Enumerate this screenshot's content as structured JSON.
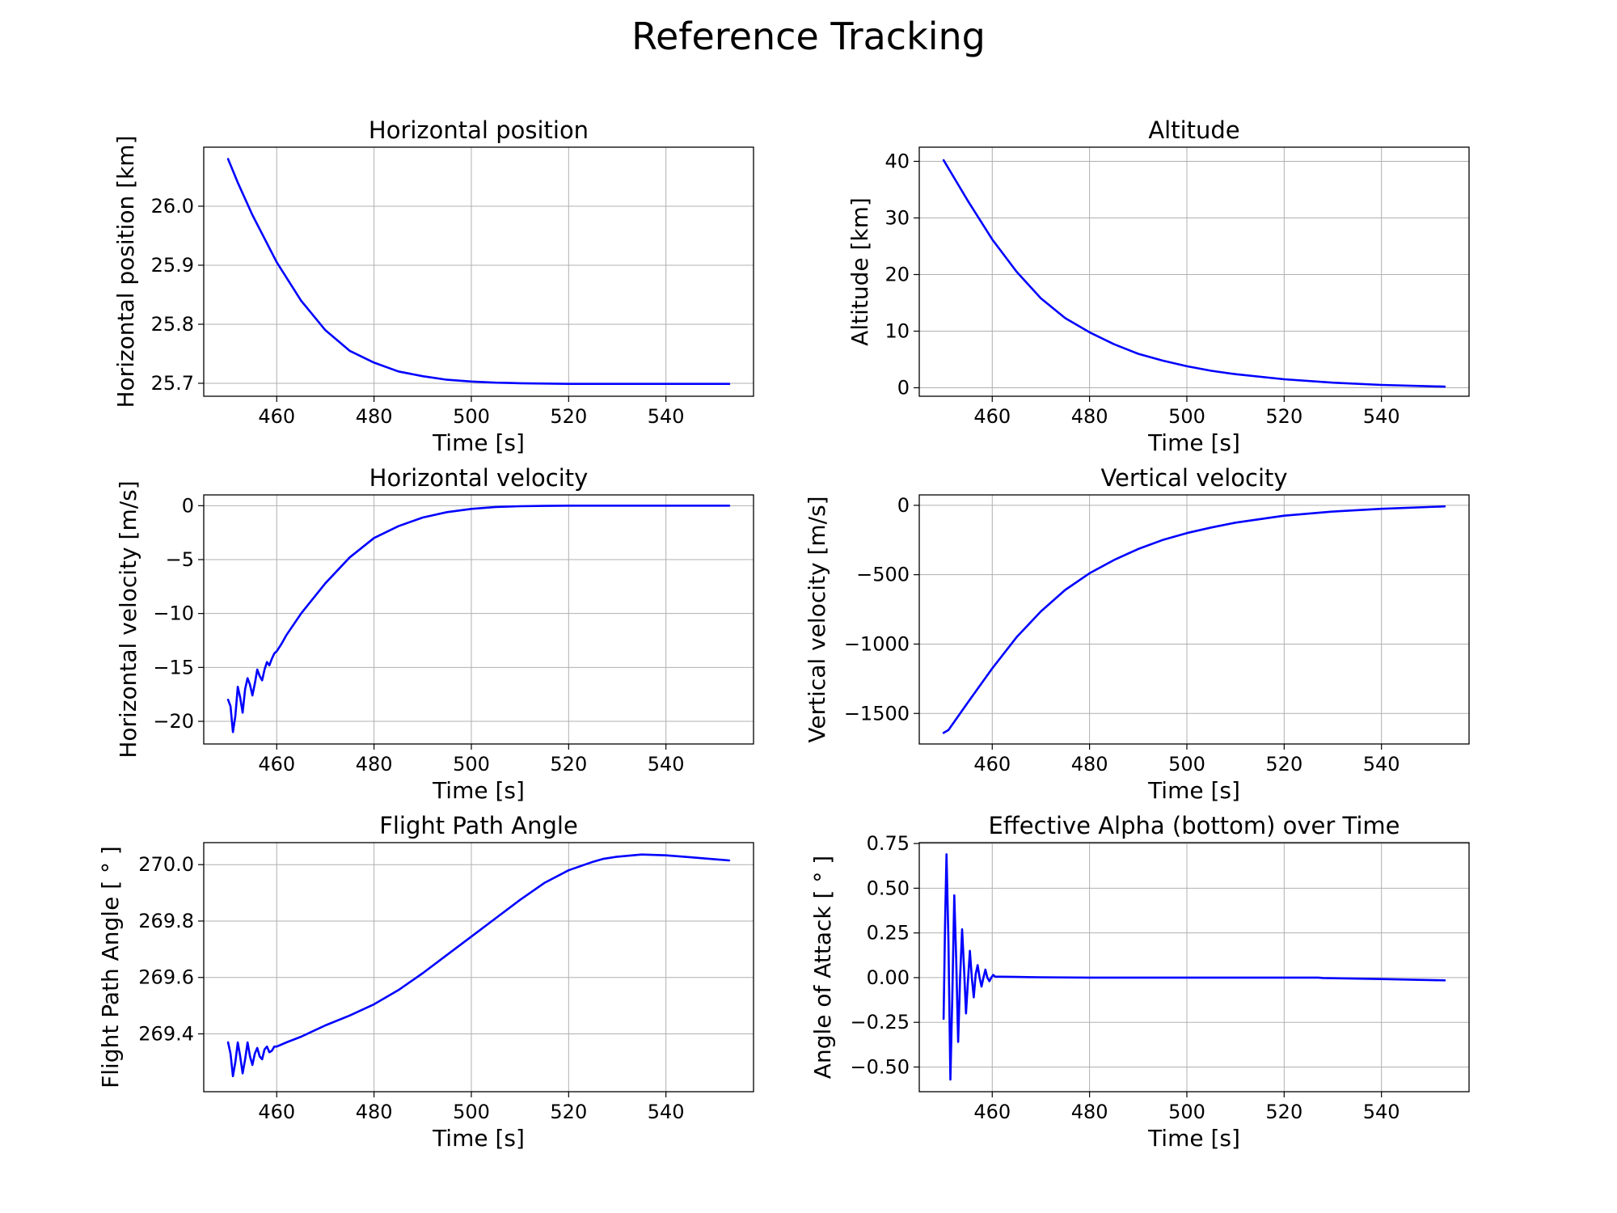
{
  "figure": {
    "title": "Reference Tracking"
  },
  "chart_data": [
    {
      "type": "line",
      "title": "Horizontal position",
      "xlabel": "Time [s]",
      "ylabel": "Horizontal position [km]",
      "xlim": [
        445,
        558
      ],
      "ylim": [
        25.678,
        26.1
      ],
      "xticks": [
        460,
        480,
        500,
        520,
        540
      ],
      "xtick_labels": [
        "460",
        "480",
        "500",
        "520",
        "540"
      ],
      "yticks": [
        25.7,
        25.8,
        25.9,
        26.0
      ],
      "ytick_labels": [
        "25.7",
        "25.8",
        "25.9",
        "26.0"
      ],
      "grid": true,
      "series": [
        {
          "color": "#0000ff",
          "x": [
            450,
            452,
            455,
            460,
            465,
            470,
            475,
            480,
            485,
            490,
            495,
            500,
            505,
            510,
            520,
            530,
            540,
            553
          ],
          "y": [
            26.08,
            26.04,
            25.985,
            25.905,
            25.84,
            25.79,
            25.755,
            25.735,
            25.72,
            25.712,
            25.706,
            25.703,
            25.701,
            25.7,
            25.699,
            25.699,
            25.699,
            25.699
          ]
        }
      ]
    },
    {
      "type": "line",
      "title": "Altitude",
      "xlabel": "Time [s]",
      "ylabel": "Altitude [km]",
      "xlim": [
        445,
        558
      ],
      "ylim": [
        -1.5,
        42.5
      ],
      "xticks": [
        460,
        480,
        500,
        520,
        540
      ],
      "xtick_labels": [
        "460",
        "480",
        "500",
        "520",
        "540"
      ],
      "yticks": [
        0,
        10,
        20,
        30,
        40
      ],
      "ytick_labels": [
        "0",
        "10",
        "20",
        "30",
        "40"
      ],
      "grid": true,
      "series": [
        {
          "color": "#0000ff",
          "x": [
            450,
            455,
            460,
            465,
            470,
            475,
            480,
            485,
            490,
            495,
            500,
            505,
            510,
            520,
            530,
            540,
            553
          ],
          "y": [
            40.2,
            33.0,
            26.2,
            20.5,
            15.8,
            12.3,
            9.8,
            7.7,
            6.0,
            4.8,
            3.8,
            3.0,
            2.4,
            1.5,
            0.9,
            0.5,
            0.2
          ]
        }
      ]
    },
    {
      "type": "line",
      "title": "Horizontal velocity",
      "xlabel": "Time [s]",
      "ylabel": "Horizontal velocity [m/s]",
      "xlim": [
        445,
        558
      ],
      "ylim": [
        -22.1,
        1.0
      ],
      "xticks": [
        460,
        480,
        500,
        520,
        540
      ],
      "xtick_labels": [
        "460",
        "480",
        "500",
        "520",
        "540"
      ],
      "yticks": [
        -20,
        -15,
        -10,
        -5,
        0
      ],
      "ytick_labels": [
        "−20",
        "−15",
        "−10",
        "−5",
        "0"
      ],
      "grid": true,
      "series": [
        {
          "color": "#0000ff",
          "x": [
            450,
            450.5,
            451,
            451.5,
            452,
            452.5,
            453,
            453.5,
            454,
            454.5,
            455,
            455.5,
            456,
            456.5,
            457,
            457.5,
            458,
            458.5,
            459,
            459.5,
            460,
            461,
            462,
            465,
            470,
            475,
            480,
            485,
            490,
            495,
            500,
            505,
            510,
            515,
            520,
            525,
            530,
            540,
            553
          ],
          "y": [
            -18.0,
            -18.6,
            -21.0,
            -19.5,
            -16.8,
            -17.8,
            -19.2,
            -17.0,
            -16.0,
            -16.6,
            -17.6,
            -16.5,
            -15.2,
            -15.8,
            -16.2,
            -15.2,
            -14.5,
            -14.8,
            -14.2,
            -13.7,
            -13.5,
            -12.8,
            -12.0,
            -10.0,
            -7.2,
            -4.8,
            -3.0,
            -1.9,
            -1.1,
            -0.6,
            -0.3,
            -0.12,
            -0.05,
            -0.02,
            0.0,
            0.0,
            0.0,
            0.0,
            0.0
          ]
        }
      ]
    },
    {
      "type": "line",
      "title": "Vertical velocity",
      "xlabel": "Time [s]",
      "ylabel": "Vertical velocity [m/s]",
      "xlim": [
        445,
        558
      ],
      "ylim": [
        -1720,
        75
      ],
      "xticks": [
        460,
        480,
        500,
        520,
        540
      ],
      "xtick_labels": [
        "460",
        "480",
        "500",
        "520",
        "540"
      ],
      "yticks": [
        -1500,
        -1000,
        -500,
        0
      ],
      "ytick_labels": [
        "−1500",
        "−1000",
        "−500",
        "0"
      ],
      "grid": true,
      "series": [
        {
          "color": "#0000ff",
          "x": [
            450,
            451,
            455,
            460,
            465,
            470,
            475,
            480,
            485,
            490,
            495,
            500,
            505,
            510,
            520,
            530,
            540,
            553
          ],
          "y": [
            -1640,
            -1620,
            -1420,
            -1175,
            -950,
            -765,
            -610,
            -490,
            -395,
            -315,
            -250,
            -200,
            -160,
            -125,
            -75,
            -45,
            -25,
            -8
          ]
        }
      ]
    },
    {
      "type": "line",
      "title": "Flight Path Angle",
      "xlabel": "Time [s]",
      "ylabel": "Flight Path Angle [ ° ]",
      "xlim": [
        445,
        558
      ],
      "ylim": [
        269.195,
        270.078
      ],
      "xticks": [
        460,
        480,
        500,
        520,
        540
      ],
      "xtick_labels": [
        "460",
        "480",
        "500",
        "520",
        "540"
      ],
      "yticks": [
        269.4,
        269.6,
        269.8,
        270.0
      ],
      "ytick_labels": [
        "269.4",
        "269.6",
        "269.8",
        "270.0"
      ],
      "grid": true,
      "series": [
        {
          "color": "#0000ff",
          "x": [
            450,
            450.5,
            451,
            451.5,
            452,
            452.5,
            453,
            453.5,
            454,
            454.5,
            455,
            455.5,
            456,
            456.5,
            457,
            457.5,
            458,
            458.5,
            459,
            459.5,
            460,
            462,
            465,
            470,
            475,
            480,
            485,
            490,
            495,
            500,
            505,
            510,
            515,
            520,
            525,
            527,
            530,
            535,
            540,
            545,
            553
          ],
          "y": [
            269.37,
            269.33,
            269.25,
            269.3,
            269.37,
            269.32,
            269.26,
            269.31,
            269.37,
            269.32,
            269.29,
            269.33,
            269.35,
            269.32,
            269.31,
            269.345,
            269.355,
            269.335,
            269.34,
            269.355,
            269.355,
            269.37,
            269.39,
            269.43,
            269.465,
            269.505,
            269.555,
            269.615,
            269.68,
            269.745,
            269.81,
            269.875,
            269.935,
            269.98,
            270.01,
            270.02,
            270.028,
            270.036,
            270.033,
            270.026,
            270.015
          ]
        }
      ]
    },
    {
      "type": "line",
      "title": "Effective Alpha (bottom) over Time",
      "xlabel": "Time [s]",
      "ylabel": "Angle of Attack [ ° ]",
      "xlim": [
        445,
        558
      ],
      "ylim": [
        -0.638,
        0.755
      ],
      "xticks": [
        460,
        480,
        500,
        520,
        540
      ],
      "xtick_labels": [
        "460",
        "480",
        "500",
        "520",
        "540"
      ],
      "yticks": [
        -0.5,
        -0.25,
        0.0,
        0.25,
        0.5,
        0.75
      ],
      "ytick_labels": [
        "−0.50",
        "−0.25",
        "0.00",
        "0.25",
        "0.50",
        "0.75"
      ],
      "grid": true,
      "series": [
        {
          "color": "#0000ff",
          "x": [
            450,
            450.3,
            450.6,
            451,
            451.4,
            451.8,
            452.2,
            452.6,
            453,
            453.4,
            453.8,
            454.2,
            454.6,
            455,
            455.4,
            455.8,
            456.2,
            456.6,
            457,
            457.4,
            457.8,
            458.2,
            458.6,
            459,
            459.4,
            459.8,
            460.2,
            460.6,
            461,
            462,
            465,
            470,
            480,
            500,
            520,
            527,
            528,
            540,
            553
          ],
          "y": [
            -0.23,
            0.3,
            0.69,
            0.2,
            -0.57,
            -0.1,
            0.46,
            0.1,
            -0.36,
            0.0,
            0.27,
            0.05,
            -0.2,
            -0.02,
            0.15,
            0.0,
            -0.11,
            0.02,
            0.07,
            0.0,
            -0.05,
            0.0,
            0.045,
            0.0,
            -0.02,
            0.0,
            0.015,
            0.005,
            0.005,
            0.005,
            0.004,
            0.002,
            0.0,
            0.0,
            0.0,
            0.0,
            -0.002,
            -0.008,
            -0.015
          ]
        }
      ]
    }
  ]
}
